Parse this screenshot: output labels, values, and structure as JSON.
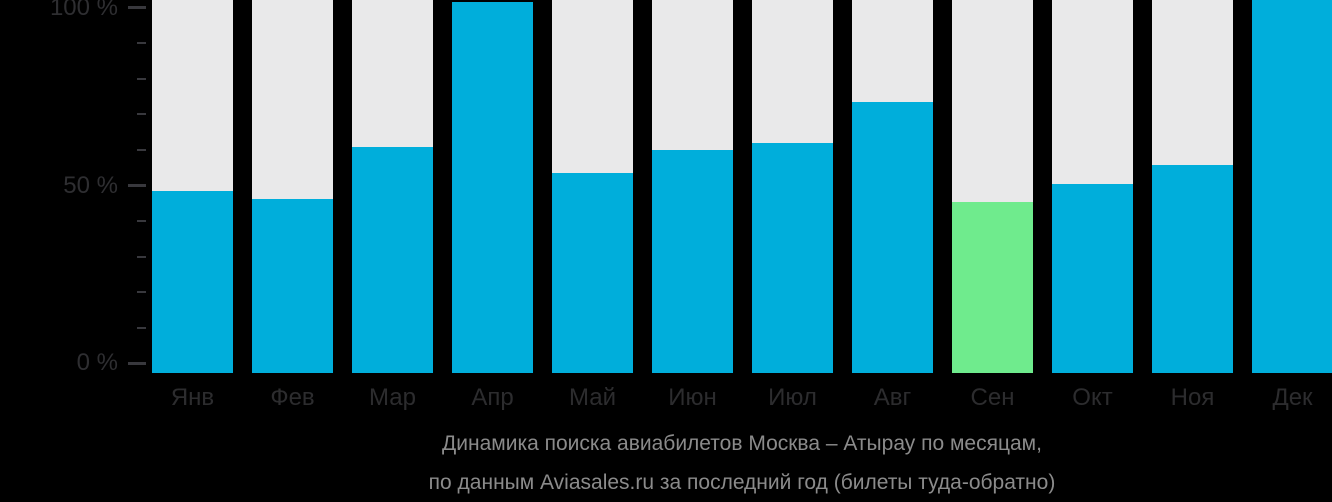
{
  "chart_data": {
    "type": "bar",
    "title": "Динамика поиска авиабилетов Москва – Атырау по месяцам,",
    "subtitle": "по данным Aviasales.ru за последний год (билеты туда-обратно)",
    "categories": [
      "Янв",
      "Фев",
      "Мар",
      "Апр",
      "Май",
      "Июн",
      "Июл",
      "Авг",
      "Сен",
      "Окт",
      "Ноя",
      "Дек"
    ],
    "values": [
      49,
      47,
      61,
      100,
      54,
      60,
      62,
      73,
      46,
      51,
      56,
      102
    ],
    "unit": "%",
    "ylim": [
      0,
      100
    ],
    "yticks_labeled": [
      0,
      50,
      100
    ],
    "ytick_label_format": "{v} %",
    "ytick_minor_step": 10,
    "grid": false,
    "legend": false,
    "highlight_month": "Сен",
    "highlight_index": 8,
    "notes": "Bars rendered over full-height light backdrop columns; the Дек bar is clipped by the top edge of the image",
    "colors": {
      "bar": "#00aedb",
      "highlight_bar": "#6feb8d",
      "backdrop_column": "#e9e9ea",
      "background": "#000000",
      "axis_text": "#2e2e31",
      "tick_mark": "#38383d",
      "month_text": "#2c2c2e",
      "caption_text": "#8b8b8b"
    }
  }
}
